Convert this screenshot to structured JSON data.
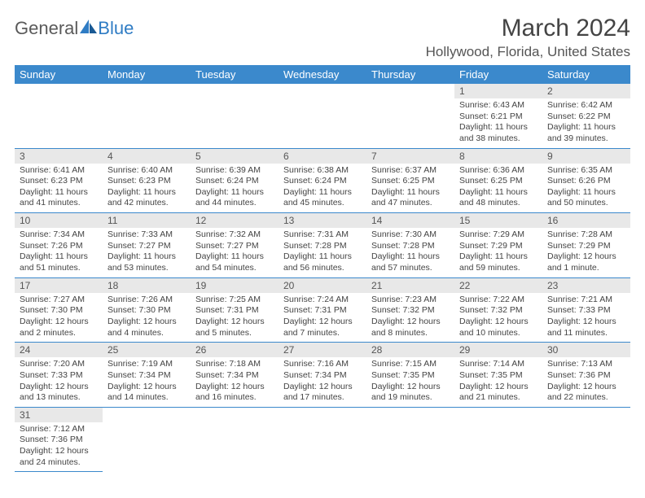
{
  "brand": {
    "part1": "General",
    "part2": "Blue"
  },
  "title": "March 2024",
  "location": "Hollywood, Florida, United States",
  "colors": {
    "header_bg": "#3b89cc",
    "header_text": "#ffffff",
    "daynum_bg": "#e8e8e8",
    "border": "#3b89cc",
    "brand_gray": "#5a5a5a",
    "brand_blue": "#2f7cc4"
  },
  "weekdays": [
    "Sunday",
    "Monday",
    "Tuesday",
    "Wednesday",
    "Thursday",
    "Friday",
    "Saturday"
  ],
  "weeks": [
    [
      null,
      null,
      null,
      null,
      null,
      {
        "n": "1",
        "sr": "Sunrise: 6:43 AM",
        "ss": "Sunset: 6:21 PM",
        "d1": "Daylight: 11 hours",
        "d2": "and 38 minutes."
      },
      {
        "n": "2",
        "sr": "Sunrise: 6:42 AM",
        "ss": "Sunset: 6:22 PM",
        "d1": "Daylight: 11 hours",
        "d2": "and 39 minutes."
      }
    ],
    [
      {
        "n": "3",
        "sr": "Sunrise: 6:41 AM",
        "ss": "Sunset: 6:23 PM",
        "d1": "Daylight: 11 hours",
        "d2": "and 41 minutes."
      },
      {
        "n": "4",
        "sr": "Sunrise: 6:40 AM",
        "ss": "Sunset: 6:23 PM",
        "d1": "Daylight: 11 hours",
        "d2": "and 42 minutes."
      },
      {
        "n": "5",
        "sr": "Sunrise: 6:39 AM",
        "ss": "Sunset: 6:24 PM",
        "d1": "Daylight: 11 hours",
        "d2": "and 44 minutes."
      },
      {
        "n": "6",
        "sr": "Sunrise: 6:38 AM",
        "ss": "Sunset: 6:24 PM",
        "d1": "Daylight: 11 hours",
        "d2": "and 45 minutes."
      },
      {
        "n": "7",
        "sr": "Sunrise: 6:37 AM",
        "ss": "Sunset: 6:25 PM",
        "d1": "Daylight: 11 hours",
        "d2": "and 47 minutes."
      },
      {
        "n": "8",
        "sr": "Sunrise: 6:36 AM",
        "ss": "Sunset: 6:25 PM",
        "d1": "Daylight: 11 hours",
        "d2": "and 48 minutes."
      },
      {
        "n": "9",
        "sr": "Sunrise: 6:35 AM",
        "ss": "Sunset: 6:26 PM",
        "d1": "Daylight: 11 hours",
        "d2": "and 50 minutes."
      }
    ],
    [
      {
        "n": "10",
        "sr": "Sunrise: 7:34 AM",
        "ss": "Sunset: 7:26 PM",
        "d1": "Daylight: 11 hours",
        "d2": "and 51 minutes."
      },
      {
        "n": "11",
        "sr": "Sunrise: 7:33 AM",
        "ss": "Sunset: 7:27 PM",
        "d1": "Daylight: 11 hours",
        "d2": "and 53 minutes."
      },
      {
        "n": "12",
        "sr": "Sunrise: 7:32 AM",
        "ss": "Sunset: 7:27 PM",
        "d1": "Daylight: 11 hours",
        "d2": "and 54 minutes."
      },
      {
        "n": "13",
        "sr": "Sunrise: 7:31 AM",
        "ss": "Sunset: 7:28 PM",
        "d1": "Daylight: 11 hours",
        "d2": "and 56 minutes."
      },
      {
        "n": "14",
        "sr": "Sunrise: 7:30 AM",
        "ss": "Sunset: 7:28 PM",
        "d1": "Daylight: 11 hours",
        "d2": "and 57 minutes."
      },
      {
        "n": "15",
        "sr": "Sunrise: 7:29 AM",
        "ss": "Sunset: 7:29 PM",
        "d1": "Daylight: 11 hours",
        "d2": "and 59 minutes."
      },
      {
        "n": "16",
        "sr": "Sunrise: 7:28 AM",
        "ss": "Sunset: 7:29 PM",
        "d1": "Daylight: 12 hours",
        "d2": "and 1 minute."
      }
    ],
    [
      {
        "n": "17",
        "sr": "Sunrise: 7:27 AM",
        "ss": "Sunset: 7:30 PM",
        "d1": "Daylight: 12 hours",
        "d2": "and 2 minutes."
      },
      {
        "n": "18",
        "sr": "Sunrise: 7:26 AM",
        "ss": "Sunset: 7:30 PM",
        "d1": "Daylight: 12 hours",
        "d2": "and 4 minutes."
      },
      {
        "n": "19",
        "sr": "Sunrise: 7:25 AM",
        "ss": "Sunset: 7:31 PM",
        "d1": "Daylight: 12 hours",
        "d2": "and 5 minutes."
      },
      {
        "n": "20",
        "sr": "Sunrise: 7:24 AM",
        "ss": "Sunset: 7:31 PM",
        "d1": "Daylight: 12 hours",
        "d2": "and 7 minutes."
      },
      {
        "n": "21",
        "sr": "Sunrise: 7:23 AM",
        "ss": "Sunset: 7:32 PM",
        "d1": "Daylight: 12 hours",
        "d2": "and 8 minutes."
      },
      {
        "n": "22",
        "sr": "Sunrise: 7:22 AM",
        "ss": "Sunset: 7:32 PM",
        "d1": "Daylight: 12 hours",
        "d2": "and 10 minutes."
      },
      {
        "n": "23",
        "sr": "Sunrise: 7:21 AM",
        "ss": "Sunset: 7:33 PM",
        "d1": "Daylight: 12 hours",
        "d2": "and 11 minutes."
      }
    ],
    [
      {
        "n": "24",
        "sr": "Sunrise: 7:20 AM",
        "ss": "Sunset: 7:33 PM",
        "d1": "Daylight: 12 hours",
        "d2": "and 13 minutes."
      },
      {
        "n": "25",
        "sr": "Sunrise: 7:19 AM",
        "ss": "Sunset: 7:34 PM",
        "d1": "Daylight: 12 hours",
        "d2": "and 14 minutes."
      },
      {
        "n": "26",
        "sr": "Sunrise: 7:18 AM",
        "ss": "Sunset: 7:34 PM",
        "d1": "Daylight: 12 hours",
        "d2": "and 16 minutes."
      },
      {
        "n": "27",
        "sr": "Sunrise: 7:16 AM",
        "ss": "Sunset: 7:34 PM",
        "d1": "Daylight: 12 hours",
        "d2": "and 17 minutes."
      },
      {
        "n": "28",
        "sr": "Sunrise: 7:15 AM",
        "ss": "Sunset: 7:35 PM",
        "d1": "Daylight: 12 hours",
        "d2": "and 19 minutes."
      },
      {
        "n": "29",
        "sr": "Sunrise: 7:14 AM",
        "ss": "Sunset: 7:35 PM",
        "d1": "Daylight: 12 hours",
        "d2": "and 21 minutes."
      },
      {
        "n": "30",
        "sr": "Sunrise: 7:13 AM",
        "ss": "Sunset: 7:36 PM",
        "d1": "Daylight: 12 hours",
        "d2": "and 22 minutes."
      }
    ],
    [
      {
        "n": "31",
        "sr": "Sunrise: 7:12 AM",
        "ss": "Sunset: 7:36 PM",
        "d1": "Daylight: 12 hours",
        "d2": "and 24 minutes."
      },
      null,
      null,
      null,
      null,
      null,
      null
    ]
  ]
}
